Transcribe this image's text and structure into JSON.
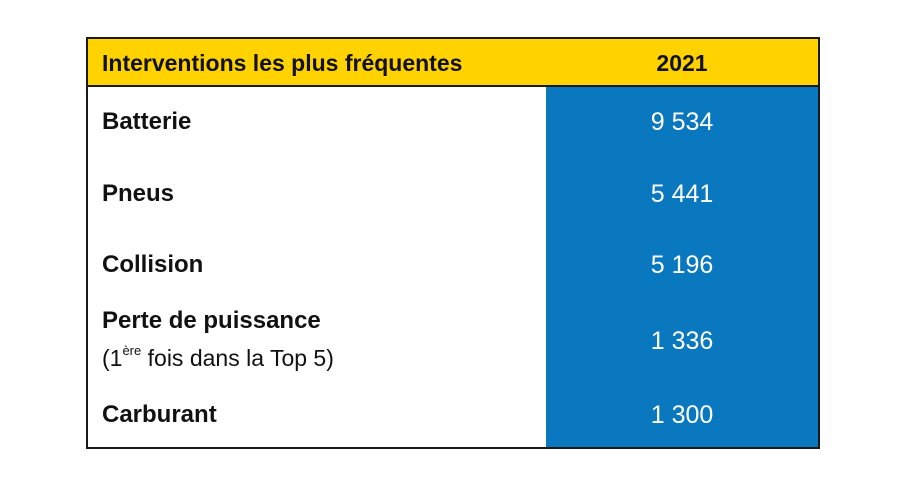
{
  "table": {
    "header": {
      "label": "Interventions les plus fréquentes",
      "year": "2021"
    },
    "rows": [
      {
        "label": "Batterie",
        "value": "9 534"
      },
      {
        "label": "Pneus",
        "value": "5 441"
      },
      {
        "label": "Collision",
        "value": "5 196"
      },
      {
        "label": "Perte de puissance",
        "sub_prefix": "(1",
        "sub_sup": "ère",
        "sub_suffix": " fois dans la Top 5)",
        "value": "1 336"
      },
      {
        "label": "Carburant",
        "value": "1 300"
      }
    ],
    "colors": {
      "header_bg": "#FFD200",
      "value_column_bg": "#0A78BE",
      "value_text": "#FFFFFF",
      "border": "#1A1A1A"
    }
  }
}
